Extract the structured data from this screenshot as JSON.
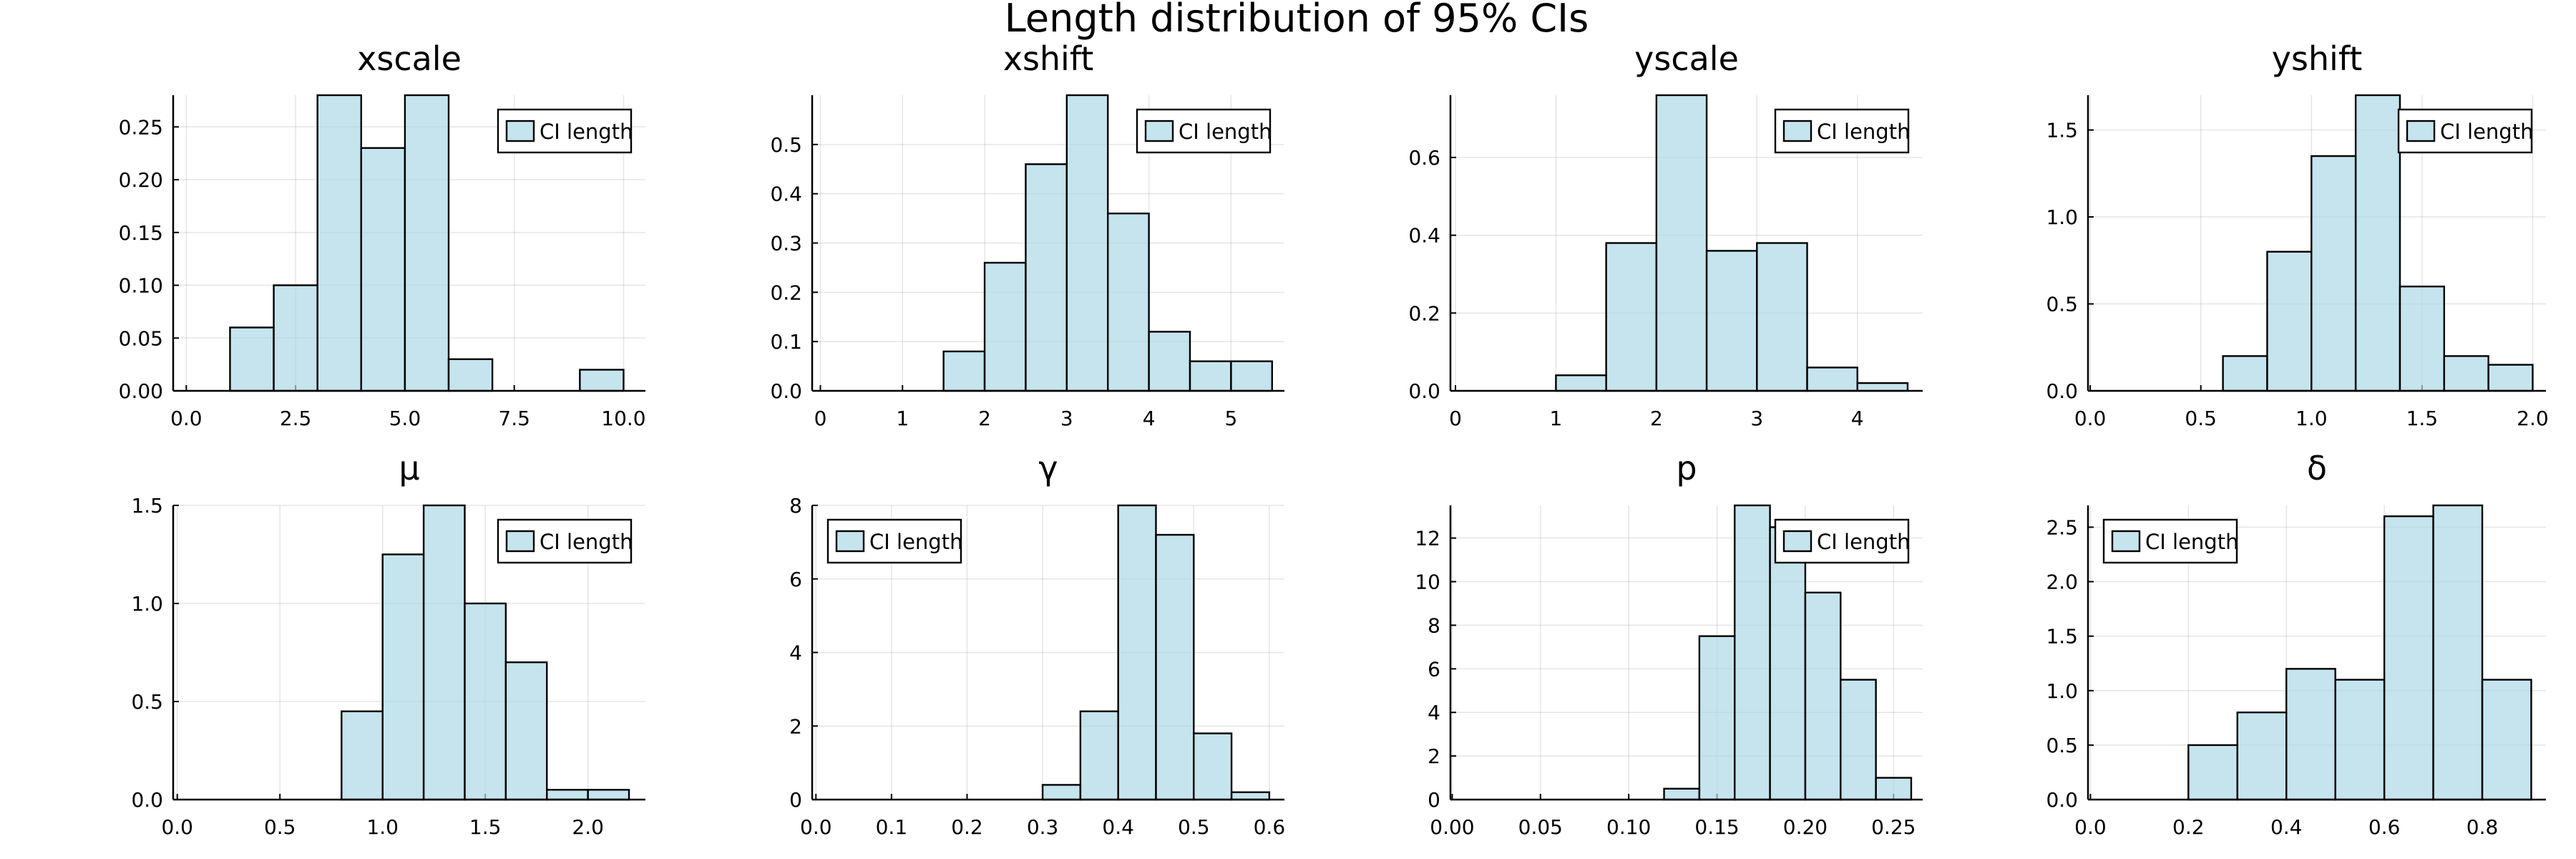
{
  "page": {
    "title": "Length distribution of 95% CIs"
  },
  "style": {
    "bar_fill": "#add8e6",
    "bar_fill_opacity": 0.7,
    "bar_stroke": "#000000"
  },
  "chart_data": [
    {
      "type": "bar",
      "title": "xscale",
      "legend": "CI length",
      "legend_position": "top-right",
      "grid": true,
      "xlim": [
        -0.3,
        10.5
      ],
      "ylim": [
        0,
        0.28
      ],
      "xticks": [
        "0.0",
        "2.5",
        "5.0",
        "7.5",
        "10.0"
      ],
      "yticks": [
        "0.00",
        "0.05",
        "0.10",
        "0.15",
        "0.20",
        "0.25"
      ],
      "bins": [
        [
          1,
          2,
          0.06
        ],
        [
          2,
          3,
          0.1
        ],
        [
          3,
          4,
          0.28
        ],
        [
          4,
          5,
          0.23
        ],
        [
          5,
          6,
          0.28
        ],
        [
          6,
          7,
          0.03
        ],
        [
          7,
          8,
          0
        ],
        [
          8,
          9,
          0
        ],
        [
          9,
          10,
          0.02
        ]
      ]
    },
    {
      "type": "bar",
      "title": "xshift",
      "legend": "CI length",
      "legend_position": "top-right",
      "grid": true,
      "xlim": [
        -0.1,
        5.65
      ],
      "ylim": [
        0,
        0.6
      ],
      "xticks": [
        "0",
        "1",
        "2",
        "3",
        "4",
        "5"
      ],
      "yticks": [
        "0.0",
        "0.1",
        "0.2",
        "0.3",
        "0.4",
        "0.5"
      ],
      "bins": [
        [
          1.5,
          2.0,
          0.08
        ],
        [
          2.0,
          2.5,
          0.26
        ],
        [
          2.5,
          3.0,
          0.46
        ],
        [
          3.0,
          3.5,
          0.6
        ],
        [
          3.5,
          4.0,
          0.36
        ],
        [
          4.0,
          4.5,
          0.12
        ],
        [
          4.5,
          5.0,
          0.06
        ],
        [
          5.0,
          5.5,
          0.06
        ]
      ]
    },
    {
      "type": "bar",
      "title": "yscale",
      "legend": "CI length",
      "legend_position": "top-right",
      "grid": true,
      "xlim": [
        -0.05,
        4.65
      ],
      "ylim": [
        0,
        0.76
      ],
      "xticks": [
        "0",
        "1",
        "2",
        "3",
        "4"
      ],
      "yticks": [
        "0.0",
        "0.2",
        "0.4",
        "0.6"
      ],
      "bins": [
        [
          1.0,
          1.5,
          0.04
        ],
        [
          1.5,
          2.0,
          0.38
        ],
        [
          2.0,
          2.5,
          0.76
        ],
        [
          2.5,
          3.0,
          0.36
        ],
        [
          3.0,
          3.5,
          0.38
        ],
        [
          3.5,
          4.0,
          0.06
        ],
        [
          4.0,
          4.5,
          0.02
        ]
      ]
    },
    {
      "type": "bar",
      "title": "yshift",
      "legend": "CI length",
      "legend_position": "top-right",
      "grid": true,
      "xlim": [
        -0.01,
        2.06
      ],
      "ylim": [
        0,
        1.7
      ],
      "xticks": [
        "0.0",
        "0.5",
        "1.0",
        "1.5",
        "2.0"
      ],
      "yticks": [
        "0.0",
        "0.5",
        "1.0",
        "1.5"
      ],
      "bins": [
        [
          0.6,
          0.8,
          0.2
        ],
        [
          0.8,
          1.0,
          0.8
        ],
        [
          1.0,
          1.2,
          1.35
        ],
        [
          1.2,
          1.4,
          1.7
        ],
        [
          1.4,
          1.6,
          0.6
        ],
        [
          1.6,
          1.8,
          0.2
        ],
        [
          1.8,
          2.0,
          0.15
        ]
      ]
    },
    {
      "type": "bar",
      "title": "μ",
      "legend": "CI length",
      "legend_position": "top-right",
      "grid": true,
      "xlim": [
        -0.02,
        2.28
      ],
      "ylim": [
        0,
        1.5
      ],
      "xticks": [
        "0.0",
        "0.5",
        "1.0",
        "1.5",
        "2.0"
      ],
      "yticks": [
        "0.0",
        "0.5",
        "1.0",
        "1.5"
      ],
      "bins": [
        [
          0.8,
          1.0,
          0.45
        ],
        [
          1.0,
          1.2,
          1.25
        ],
        [
          1.2,
          1.4,
          1.5
        ],
        [
          1.4,
          1.6,
          1.0
        ],
        [
          1.6,
          1.8,
          0.7
        ],
        [
          1.8,
          2.0,
          0.05
        ],
        [
          2.0,
          2.2,
          0.05
        ]
      ]
    },
    {
      "type": "bar",
      "title": "γ",
      "legend": "CI length",
      "legend_position": "top-left",
      "grid": true,
      "xlim": [
        -0.005,
        0.62
      ],
      "ylim": [
        0,
        8
      ],
      "xticks": [
        "0.0",
        "0.1",
        "0.2",
        "0.3",
        "0.4",
        "0.5",
        "0.6"
      ],
      "yticks": [
        "0",
        "2",
        "4",
        "6",
        "8"
      ],
      "bins": [
        [
          0.3,
          0.35,
          0.4
        ],
        [
          0.35,
          0.4,
          2.4
        ],
        [
          0.4,
          0.45,
          8.0
        ],
        [
          0.45,
          0.5,
          7.2
        ],
        [
          0.5,
          0.55,
          1.8
        ],
        [
          0.55,
          0.6,
          0.2
        ]
      ]
    },
    {
      "type": "bar",
      "title": "p",
      "legend": "CI length",
      "legend_position": "top-right",
      "grid": true,
      "xlim": [
        -0.001,
        0.2665
      ],
      "ylim": [
        0,
        13.5
      ],
      "xticks": [
        "0.00",
        "0.05",
        "0.10",
        "0.15",
        "0.20",
        "0.25"
      ],
      "yticks": [
        "0",
        "2",
        "4",
        "6",
        "8",
        "10",
        "12"
      ],
      "bins": [
        [
          0.12,
          0.14,
          0.5
        ],
        [
          0.14,
          0.16,
          7.5
        ],
        [
          0.16,
          0.18,
          13.5
        ],
        [
          0.18,
          0.2,
          12.5
        ],
        [
          0.2,
          0.22,
          9.5
        ],
        [
          0.22,
          0.24,
          5.5
        ],
        [
          0.24,
          0.26,
          1.0
        ]
      ]
    },
    {
      "type": "bar",
      "title": "δ",
      "legend": "CI length",
      "legend_position": "top-left",
      "grid": true,
      "xlim": [
        -0.005,
        0.93
      ],
      "ylim": [
        0,
        2.7
      ],
      "xticks": [
        "0.0",
        "0.2",
        "0.4",
        "0.6",
        "0.8"
      ],
      "yticks": [
        "0.0",
        "0.5",
        "1.0",
        "1.5",
        "2.0",
        "2.5"
      ],
      "bins": [
        [
          0.2,
          0.3,
          0.5
        ],
        [
          0.3,
          0.4,
          0.8
        ],
        [
          0.4,
          0.5,
          1.2
        ],
        [
          0.5,
          0.6,
          1.1
        ],
        [
          0.6,
          0.7,
          2.6
        ],
        [
          0.7,
          0.8,
          2.7
        ],
        [
          0.8,
          0.9,
          1.1
        ]
      ]
    }
  ]
}
